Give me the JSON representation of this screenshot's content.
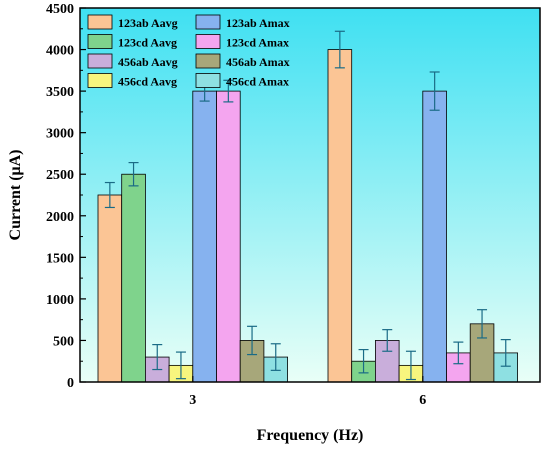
{
  "chart_data": {
    "type": "bar",
    "xlabel": "Frequency (Hz)",
    "ylabel": "Current (μA)",
    "ylim": [
      0,
      4500
    ],
    "yticks": [
      0,
      500,
      1000,
      1500,
      2000,
      2500,
      3000,
      3500,
      4000,
      4500
    ],
    "categories": [
      "3",
      "6"
    ],
    "legend_position": "top-left",
    "series": [
      {
        "name": "123ab Aavg",
        "color": "#fbc595",
        "values": [
          2250,
          4000
        ],
        "errors": [
          150,
          220
        ]
      },
      {
        "name": "123cd Aavg",
        "color": "#7fd38c",
        "values": [
          2500,
          250
        ],
        "errors": [
          140,
          140
        ]
      },
      {
        "name": "456ab Aavg",
        "color": "#c9aedb",
        "values": [
          300,
          500
        ],
        "errors": [
          150,
          130
        ]
      },
      {
        "name": "456cd Aavg",
        "color": "#f7f57e",
        "values": [
          200,
          200
        ],
        "errors": [
          160,
          170
        ]
      },
      {
        "name": "123ab Amax",
        "color": "#86b2ef",
        "values": [
          3500,
          3500
        ],
        "errors": [
          120,
          230
        ]
      },
      {
        "name": "123cd Amax",
        "color": "#f4a5ef",
        "values": [
          3500,
          350
        ],
        "errors": [
          130,
          130
        ]
      },
      {
        "name": "456ab Amax",
        "color": "#a7a77a",
        "values": [
          500,
          700
        ],
        "errors": [
          170,
          170
        ]
      },
      {
        "name": "456cd Amax",
        "color": "#8ee0e2",
        "values": [
          300,
          350
        ],
        "errors": [
          160,
          160
        ]
      }
    ],
    "background_gradient": [
      "#3fe0f2",
      "#e9fff7"
    ]
  }
}
